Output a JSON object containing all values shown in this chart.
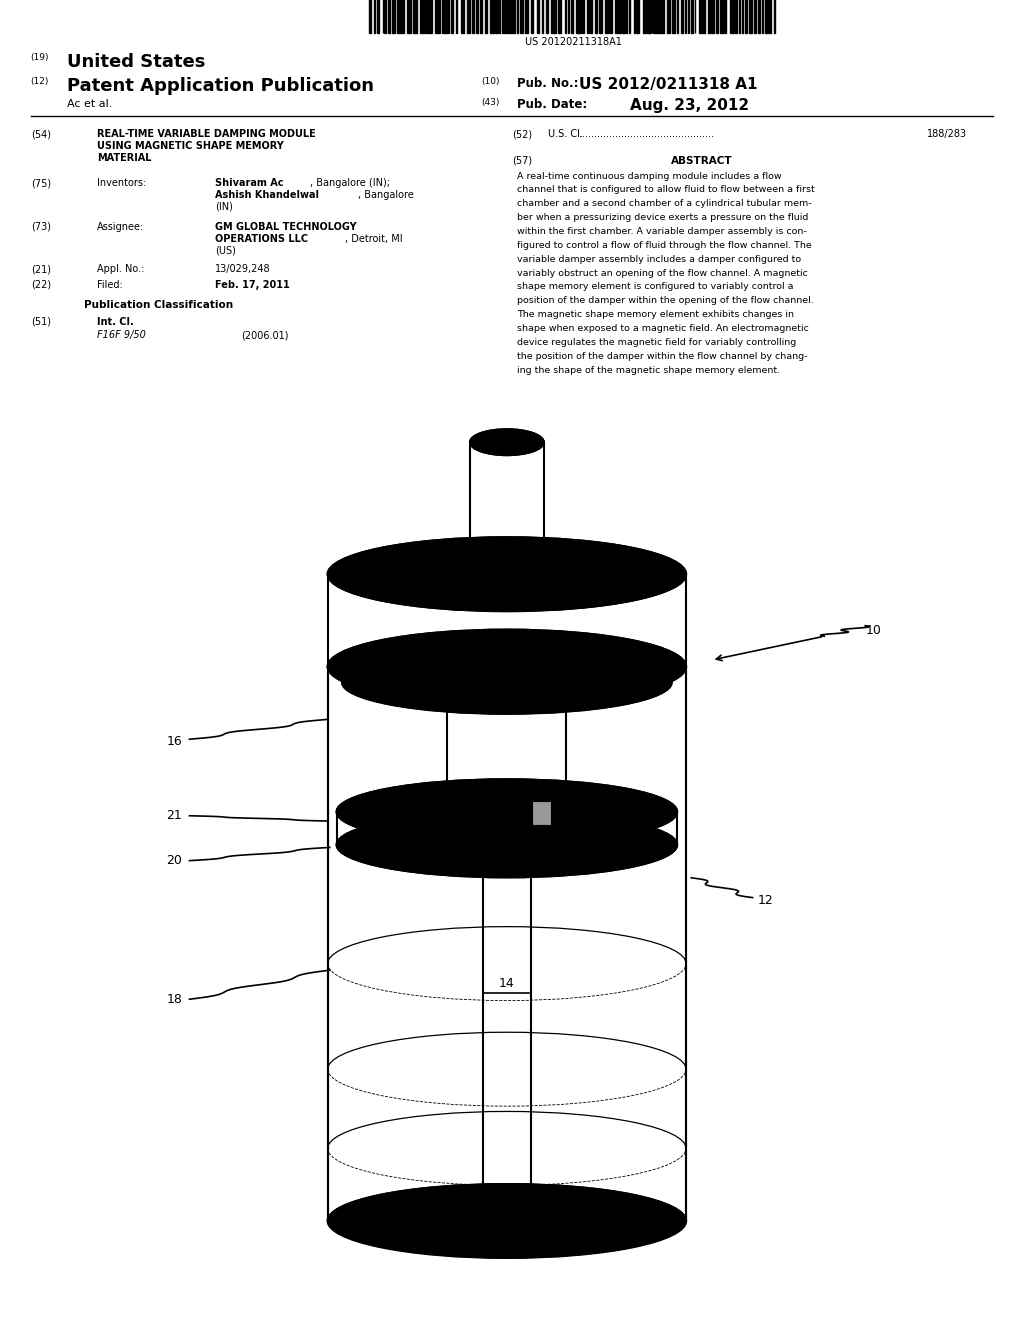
{
  "bg_color": "#ffffff",
  "barcode_text": "US 20120211318A1",
  "header_line1_num": "(19)",
  "header_line1_text": "United States",
  "header_line2_num": "(12)",
  "header_line2_text": "Patent Application Publication",
  "header_right_num1": "(10)",
  "header_right_label1": "Pub. No.:",
  "header_right_val1": "US 2012/0211318 A1",
  "header_right_num2": "(43)",
  "header_right_label2": "Pub. Date:",
  "header_right_val2": "Aug. 23, 2012",
  "header_author": "Ac et al.",
  "field54_num": "(54)",
  "field52_num": "(52)",
  "field52_dots": ".............................................",
  "field52_val": "188/283",
  "field75_num": "(75)",
  "field75_label": "Inventors:",
  "field57_num": "(57)",
  "field57_title": "ABSTRACT",
  "field57_text": "A real-time continuous damping module includes a flow\nchannel that is configured to allow fluid to flow between a first\nchamber and a second chamber of a cylindrical tubular mem-\nber when a pressurizing device exerts a pressure on the fluid\nwithin the first chamber. A variable damper assembly is con-\nfigured to control a flow of fluid through the flow channel. The\nvariable damper assembly includes a damper configured to\nvariably obstruct an opening of the flow channel. A magnetic\nshape memory element is configured to variably control a\nposition of the damper within the opening of the flow channel.\nThe magnetic shape memory element exhibits changes in\nshape when exposed to a magnetic field. An electromagnetic\ndevice regulates the magnetic field for variably controlling\nthe position of the damper within the flow channel by chang-\ning the shape of the magnetic shape memory element.",
  "field73_num": "(73)",
  "field73_label": "Assignee:",
  "field21_num": "(21)",
  "field21_label": "Appl. No.:",
  "field21_val": "13/029,248",
  "field22_num": "(22)",
  "field22_label": "Filed:",
  "field22_val": "Feb. 17, 2011",
  "pub_class_title": "Publication Classification",
  "field51_num": "(51)",
  "field51_label": "Int. Cl.",
  "field51_subval": "F16F 9/50",
  "field51_subval2": "(2006.01)",
  "label_10": "10",
  "label_12": "12",
  "label_14": "14",
  "label_16": "16",
  "label_18": "18",
  "label_20": "20",
  "label_21": "21"
}
